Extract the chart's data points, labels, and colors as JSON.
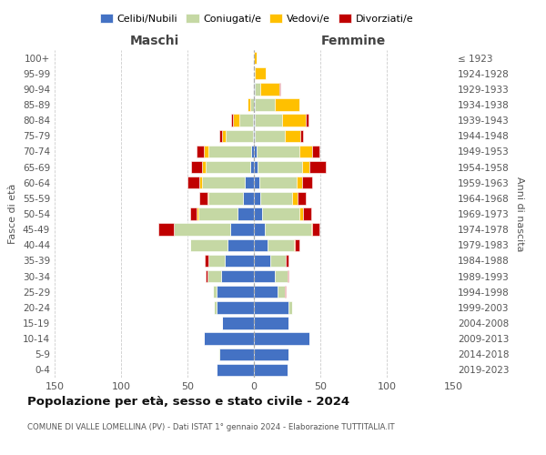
{
  "age_groups": [
    "0-4",
    "5-9",
    "10-14",
    "15-19",
    "20-24",
    "25-29",
    "30-34",
    "35-39",
    "40-44",
    "45-49",
    "50-54",
    "55-59",
    "60-64",
    "65-69",
    "70-74",
    "75-79",
    "80-84",
    "85-89",
    "90-94",
    "95-99",
    "100+"
  ],
  "birth_years": [
    "2019-2023",
    "2014-2018",
    "2009-2013",
    "2004-2008",
    "1999-2003",
    "1994-1998",
    "1989-1993",
    "1984-1988",
    "1979-1983",
    "1974-1978",
    "1969-1973",
    "1964-1968",
    "1959-1963",
    "1954-1958",
    "1949-1953",
    "1944-1948",
    "1939-1943",
    "1934-1938",
    "1929-1933",
    "1924-1928",
    "≤ 1923"
  ],
  "colors": {
    "celibe": "#4472c4",
    "coniugato": "#c5d8a4",
    "vedovo": "#ffc000",
    "divorziato": "#c00000"
  },
  "males": {
    "celibe": [
      28,
      26,
      38,
      24,
      28,
      28,
      25,
      22,
      20,
      18,
      12,
      8,
      7,
      3,
      2,
      1,
      1,
      0,
      0,
      0,
      0
    ],
    "coniugato": [
      0,
      1,
      0,
      0,
      2,
      3,
      10,
      12,
      28,
      42,
      30,
      26,
      32,
      33,
      32,
      20,
      10,
      3,
      1,
      0,
      0
    ],
    "vedovo": [
      0,
      0,
      0,
      0,
      0,
      0,
      0,
      0,
      0,
      0,
      1,
      1,
      2,
      3,
      4,
      3,
      5,
      2,
      0,
      0,
      0
    ],
    "divorziato": [
      0,
      0,
      0,
      0,
      0,
      0,
      1,
      3,
      0,
      12,
      5,
      6,
      9,
      8,
      5,
      2,
      1,
      0,
      0,
      0,
      0
    ]
  },
  "females": {
    "celibe": [
      25,
      26,
      42,
      26,
      26,
      18,
      16,
      12,
      10,
      8,
      6,
      5,
      4,
      3,
      2,
      1,
      1,
      1,
      1,
      0,
      0
    ],
    "coniugato": [
      0,
      0,
      0,
      0,
      3,
      5,
      9,
      12,
      20,
      35,
      28,
      24,
      28,
      33,
      32,
      22,
      20,
      15,
      4,
      1,
      0
    ],
    "vedovo": [
      0,
      0,
      0,
      0,
      0,
      0,
      0,
      0,
      1,
      1,
      3,
      4,
      4,
      6,
      10,
      12,
      18,
      18,
      14,
      8,
      2
    ],
    "divorziato": [
      0,
      0,
      0,
      0,
      0,
      1,
      1,
      2,
      3,
      5,
      6,
      6,
      8,
      12,
      5,
      2,
      2,
      0,
      1,
      0,
      0
    ]
  },
  "title": "Popolazione per età, sesso e stato civile - 2024",
  "subtitle": "COMUNE DI VALLE LOMELLINA (PV) - Dati ISTAT 1° gennaio 2024 - Elaborazione TUTTITALIA.IT",
  "xlabel_left": "Maschi",
  "xlabel_right": "Femmine",
  "ylabel_left": "Fasce di età",
  "ylabel_right": "Anni di nascita",
  "xlim": 150,
  "bg_color": "#ffffff",
  "grid_color": "#cccccc"
}
